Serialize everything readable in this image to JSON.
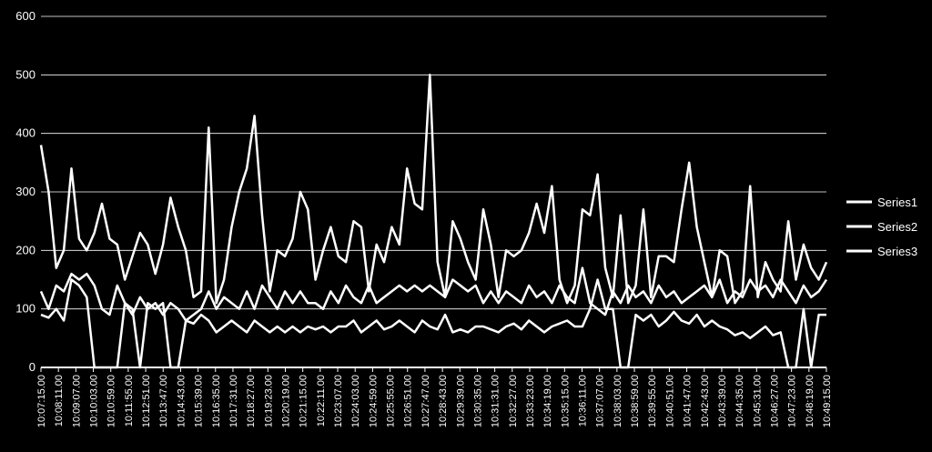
{
  "chart_data": {
    "type": "line",
    "ylim": [
      0,
      600
    ],
    "y_ticks": [
      0,
      100,
      200,
      300,
      400,
      500,
      600
    ],
    "grid": true,
    "legend_position": "right",
    "x_tick_labels": [
      "10:07:15.00",
      "10:08:11.00",
      "10:09:07.00",
      "10:10:03.00",
      "10:10:59.00",
      "10:11:55.00",
      "10:12:51.00",
      "10:13:47.00",
      "10:14:43.00",
      "10:15:39.00",
      "10:16:35.00",
      "10:17:31.00",
      "10:18:27.00",
      "10:19:23.00",
      "10:20:19.00",
      "10:21:15.00",
      "10:22:11.00",
      "10:23:07.00",
      "10:24:03.00",
      "10:24:59.00",
      "10:25:55.00",
      "10:26:51.00",
      "10:27:47.00",
      "10:28:43.00",
      "10:29:39.00",
      "10:30:35.00",
      "10:31:31.00",
      "10:32:27.00",
      "10:33:23.00",
      "10:34:19.00",
      "10:35:15.00",
      "10:36:11.00",
      "10:37:07.00",
      "10:38:03.00",
      "10:38:59.00",
      "10:39:55.00",
      "10:40:51.00",
      "10:41:47.00",
      "10:42:43.00",
      "10:43:39.00",
      "10:44:35.00",
      "10:45:31.00",
      "10:46:27.00",
      "10:47:23.00",
      "10:48:19.00",
      "10:49:15.00"
    ],
    "series": [
      {
        "name": "Series1",
        "color": "#ffffff",
        "values": [
          380,
          300,
          170,
          200,
          340,
          220,
          200,
          230,
          280,
          220,
          210,
          150,
          190,
          230,
          210,
          160,
          210,
          290,
          240,
          200,
          120,
          130,
          410,
          110,
          150,
          240,
          300,
          340,
          430,
          260,
          130,
          200,
          190,
          220,
          300,
          270,
          150,
          200,
          240,
          190,
          180,
          250,
          240,
          130,
          210,
          180,
          240,
          210,
          340,
          280,
          270,
          500,
          180,
          120,
          250,
          220,
          180,
          150,
          270,
          210,
          120,
          200,
          190,
          200,
          230,
          280,
          230,
          310,
          150,
          110,
          140,
          270,
          260,
          330,
          170,
          120,
          260,
          110,
          140,
          270,
          120,
          190,
          190,
          180,
          270,
          350,
          240,
          180,
          120,
          200,
          190,
          110,
          130,
          310,
          120,
          180,
          150,
          130,
          250,
          150,
          210,
          170,
          150,
          180
        ]
      },
      {
        "name": "Series2",
        "color": "#ffffff",
        "values": [
          130,
          100,
          140,
          130,
          160,
          150,
          160,
          140,
          100,
          90,
          140,
          110,
          90,
          120,
          100,
          110,
          90,
          110,
          100,
          80,
          90,
          100,
          130,
          100,
          120,
          110,
          100,
          130,
          100,
          140,
          120,
          100,
          130,
          110,
          130,
          110,
          110,
          100,
          130,
          110,
          140,
          120,
          110,
          140,
          110,
          120,
          130,
          140,
          130,
          140,
          130,
          140,
          130,
          120,
          150,
          140,
          130,
          140,
          110,
          130,
          110,
          130,
          120,
          110,
          140,
          120,
          130,
          110,
          140,
          120,
          110,
          170,
          110,
          100,
          90,
          130,
          110,
          140,
          120,
          130,
          110,
          140,
          120,
          130,
          110,
          120,
          130,
          140,
          120,
          150,
          110,
          130,
          120,
          150,
          130,
          140,
          120,
          150,
          130,
          110,
          140,
          120,
          130,
          150
        ]
      },
      {
        "name": "Series3",
        "color": "#ffffff",
        "values": [
          90,
          85,
          100,
          80,
          150,
          140,
          120,
          0,
          0,
          0,
          0,
          110,
          100,
          0,
          110,
          100,
          110,
          0,
          0,
          80,
          75,
          90,
          80,
          60,
          70,
          80,
          70,
          60,
          80,
          70,
          60,
          70,
          60,
          70,
          60,
          70,
          65,
          70,
          60,
          70,
          70,
          80,
          60,
          70,
          80,
          65,
          70,
          80,
          70,
          60,
          80,
          70,
          65,
          90,
          60,
          65,
          60,
          70,
          70,
          65,
          60,
          70,
          75,
          65,
          80,
          70,
          60,
          70,
          75,
          80,
          70,
          70,
          100,
          150,
          100,
          100,
          0,
          0,
          90,
          80,
          90,
          70,
          80,
          95,
          80,
          75,
          90,
          70,
          80,
          70,
          65,
          55,
          60,
          50,
          60,
          70,
          55,
          60,
          0,
          0,
          100,
          0,
          90,
          90
        ]
      }
    ]
  }
}
